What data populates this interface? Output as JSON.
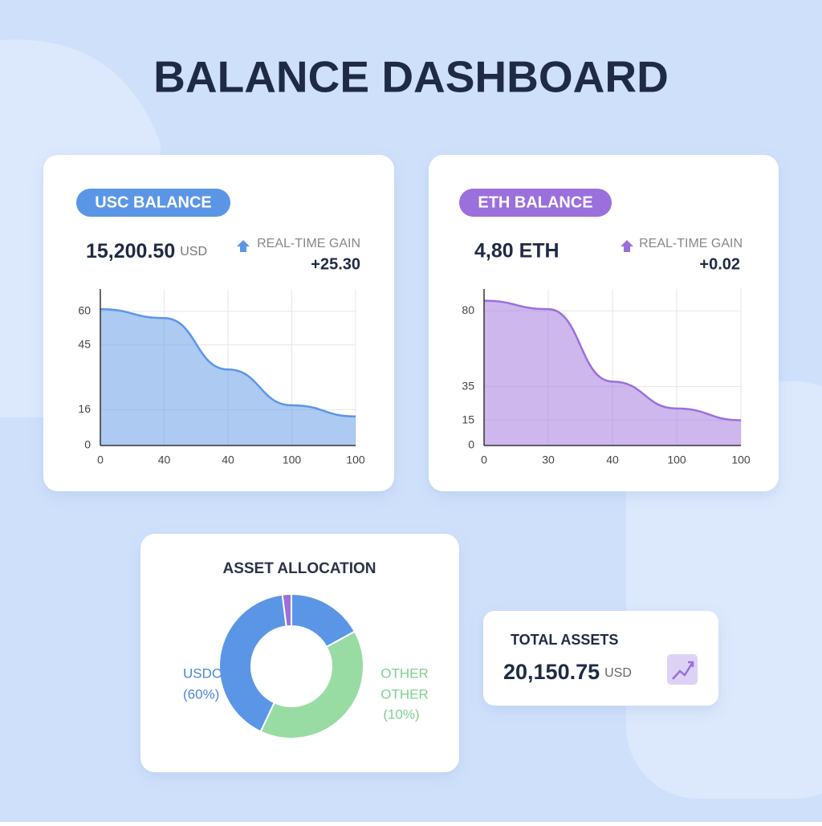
{
  "header": {
    "title": "BALANCE DASHBOARD"
  },
  "cards": [
    {
      "badge": "USC BALANCE",
      "amount": "15,200.50",
      "unit": "USD",
      "gain_label": "REAL-TIME GAIN",
      "gain": "+25.30"
    },
    {
      "badge": "ETH BALANCE",
      "amount": "4,80 ETH",
      "gain_label": "REAL-TIME GAIN",
      "gain": "+0.02"
    }
  ],
  "total": {
    "title": "TOTAL ASSETS",
    "amount": "20,150.75",
    "unit": "USD"
  },
  "chart_data": [
    {
      "type": "area",
      "categories": [
        "0",
        "40",
        "40",
        "100",
        "100"
      ],
      "values": [
        61,
        57,
        34,
        18,
        13
      ],
      "color": "#5b96e6",
      "ylim": [
        0,
        70
      ],
      "yticks": [
        0,
        16,
        45,
        60
      ],
      "grid": true
    },
    {
      "type": "area",
      "categories": [
        "0",
        "30",
        "40",
        "100",
        "100"
      ],
      "values": [
        86,
        81,
        38,
        22,
        15
      ],
      "color": "#9b6fdc",
      "ylim": [
        0,
        93
      ],
      "yticks": [
        0,
        15,
        35,
        80
      ],
      "grid": true
    },
    {
      "type": "pie",
      "title": "ASSET ALLOCATION",
      "values": [
        17,
        40,
        41,
        2
      ],
      "colors": [
        "#5b96e6",
        "#98dca4",
        "#5b96e6",
        "#9b6fdc"
      ],
      "annotations": [
        "USDC",
        "(60%)",
        "OTHER",
        "OTHER",
        "(10%)"
      ]
    }
  ]
}
